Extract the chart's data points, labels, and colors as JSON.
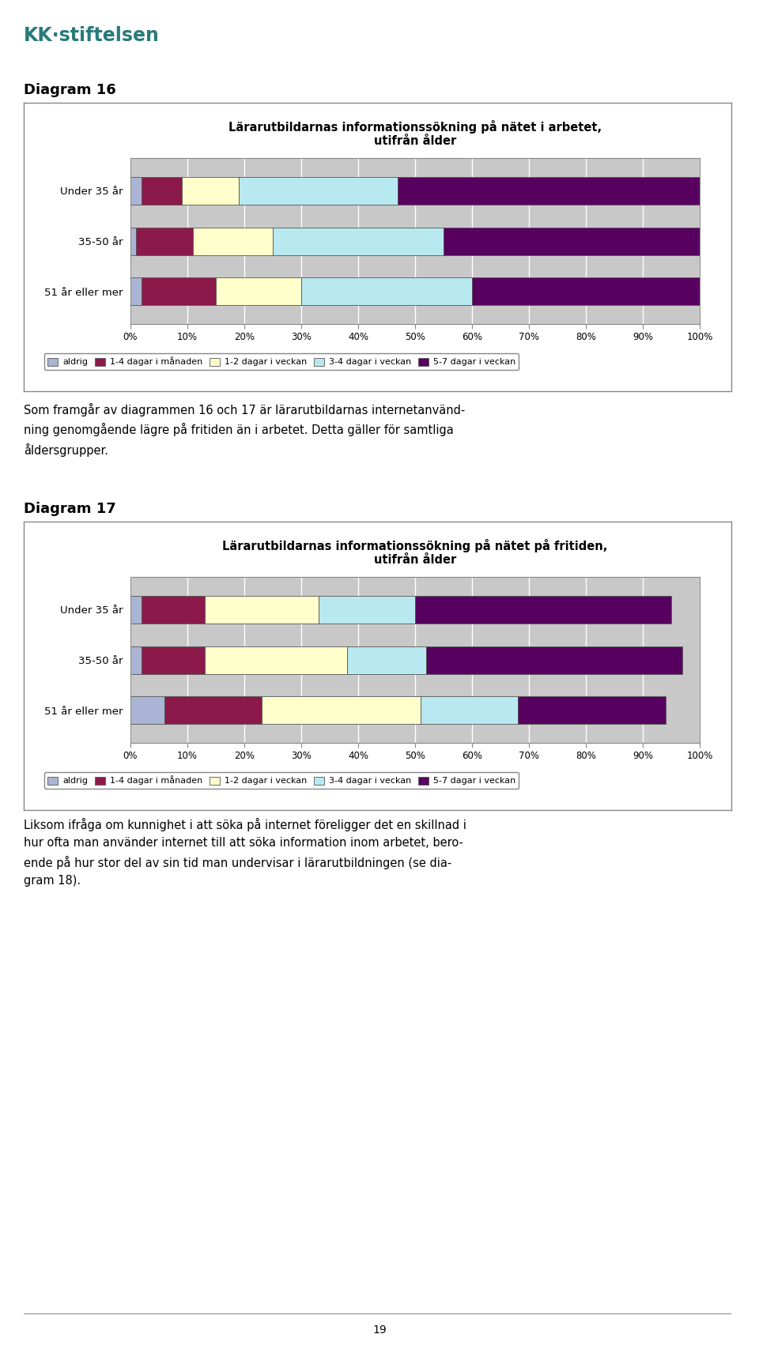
{
  "diagram16": {
    "title": "Lärarutbildarnas informationssökning på nätet i arbetet,\nutifrån ålder",
    "categories": [
      "51 år eller mer",
      "35-50 år",
      "Under 35 år"
    ],
    "series": {
      "aldrig": [
        2,
        1,
        2
      ],
      "1-4 dagar i månaden": [
        13,
        10,
        7
      ],
      "1-2 dagar i veckan": [
        15,
        14,
        10
      ],
      "3-4 dagar i veckan": [
        30,
        30,
        28
      ],
      "5-7 dagar i veckan": [
        40,
        45,
        53
      ]
    }
  },
  "diagram17": {
    "title": "Lärarutbildarnas informationssökning på nätet på fritiden,\nutifrån ålder",
    "categories": [
      "51 år eller mer",
      "35-50 år",
      "Under 35 år"
    ],
    "series": {
      "aldrig": [
        6,
        2,
        2
      ],
      "1-4 dagar i månaden": [
        17,
        11,
        11
      ],
      "1-2 dagar i veckan": [
        28,
        25,
        20
      ],
      "3-4 dagar i veckan": [
        17,
        14,
        17
      ],
      "5-7 dagar i veckan": [
        26,
        45,
        45
      ]
    }
  },
  "colors": {
    "aldrig": "#aab4d4",
    "1-4 dagar i månaden": "#8b1a4a",
    "1-2 dagar i veckan": "#ffffcc",
    "3-4 dagar i veckan": "#b8e8f0",
    "5-7 dagar i veckan": "#580060"
  },
  "series_order": [
    "aldrig",
    "1-4 dagar i månaden",
    "1-2 dagar i veckan",
    "3-4 dagar i veckan",
    "5-7 dagar i veckan"
  ],
  "chart_bg": "#c8c8c8",
  "grid_color": "#ffffff",
  "bar_edge_color": "#555555",
  "diagram16_label": "Diagram 16",
  "diagram17_label": "Diagram 17",
  "text_body": "Som framgår av diagrammen 16 och 17 är lärarutbildarnas internetanvänd-\nning genomgående lägre på fritiden än i arbetet. Detta gäller för samtliga\nåldersgrupper.",
  "text_body2": "Liksom ifråga om kunnighet i att söka på internet föreligger det en skillnad i\nhur ofta man använder internet till att söka information inom arbetet, bero-\nende på hur stor del av sin tid man undervisar i lärarutbildningen (se dia-\ngram 18).",
  "page_number": "19",
  "logo_text": "KK·stiftelsen",
  "logo_color": "#2a7a7a"
}
